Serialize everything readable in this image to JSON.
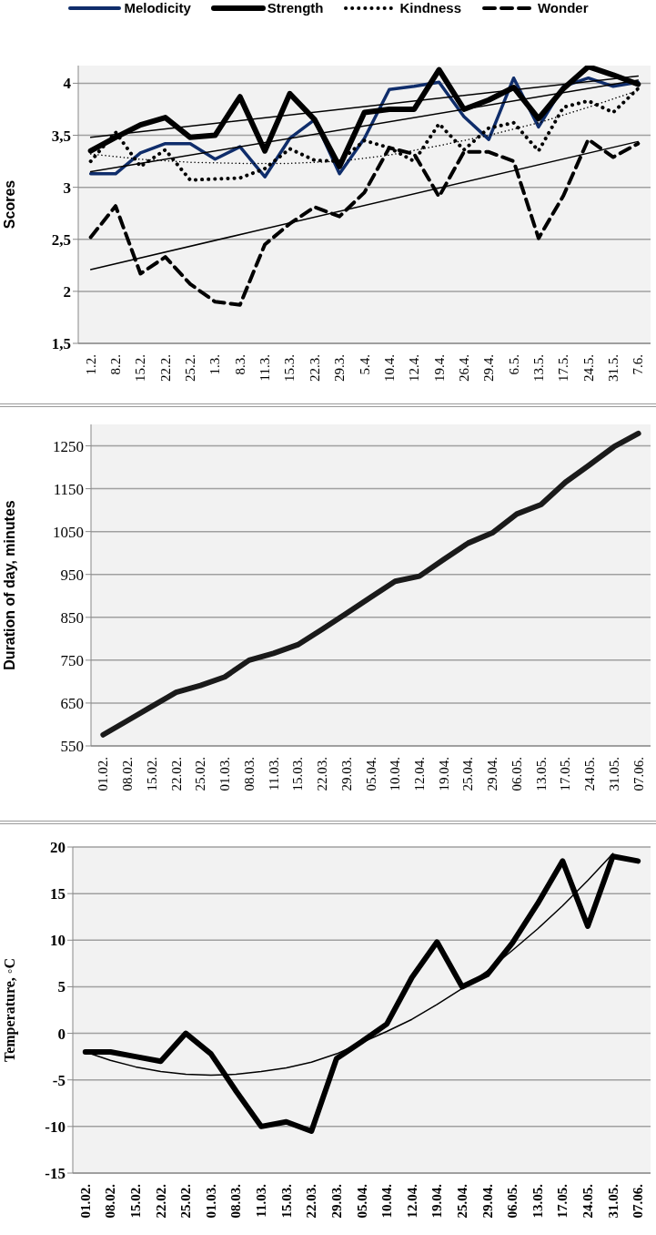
{
  "chart_data": [
    {
      "type": "line",
      "ylabel": "Scores",
      "categories": [
        "1.2.",
        "8.2.",
        "15.2.",
        "22.2.",
        "25.2.",
        "1.3.",
        "8.3.",
        "11.3.",
        "15.3.",
        "22.3.",
        "29.3.",
        "5.4.",
        "10.4.",
        "12.4.",
        "19.4.",
        "26.4.",
        "29.4.",
        "6.5.",
        "13.5.",
        "17.5.",
        "24.5.",
        "31.5.",
        "7.6."
      ],
      "ylim": [
        1.5,
        4.17
      ],
      "yticks": [
        {
          "value": 1.5,
          "label": "1,5"
        },
        2,
        {
          "value": 2.5,
          "label": "2,5"
        },
        3,
        {
          "value": 3.5,
          "label": "3,5"
        },
        4
      ],
      "grid": "y",
      "legend": "top",
      "marker": "none",
      "series": [
        {
          "name": "Melodicity",
          "color": "#0f2d6b",
          "line_style": "solid",
          "values": [
            3.13,
            3.13,
            3.33,
            3.42,
            3.42,
            3.27,
            3.39,
            3.1,
            3.47,
            3.65,
            3.13,
            3.47,
            3.94,
            3.97,
            4.01,
            3.68,
            3.46,
            4.05,
            3.58,
            3.97,
            4.05,
            3.97,
            4.01
          ]
        },
        {
          "name": "Strength",
          "color": "#000000",
          "line_style": "solid",
          "values": [
            3.35,
            3.48,
            3.6,
            3.67,
            3.48,
            3.5,
            3.87,
            3.35,
            3.9,
            3.65,
            3.2,
            3.72,
            3.75,
            3.75,
            4.13,
            3.75,
            3.84,
            3.96,
            3.66,
            3.95,
            4.16,
            4.08,
            3.99
          ]
        },
        {
          "name": "Kindness",
          "color": "#000000",
          "line_style": "dotted",
          "values": [
            3.25,
            3.53,
            3.2,
            3.36,
            3.07,
            3.08,
            3.09,
            3.18,
            3.37,
            3.26,
            3.25,
            3.45,
            3.38,
            3.25,
            3.61,
            3.36,
            3.57,
            3.62,
            3.35,
            3.77,
            3.83,
            3.72,
            3.95
          ]
        },
        {
          "name": "Wonder",
          "color": "#000000",
          "line_style": "dashed",
          "values": [
            2.52,
            2.82,
            2.17,
            2.33,
            2.07,
            1.9,
            1.87,
            2.45,
            2.65,
            2.81,
            2.72,
            2.95,
            3.38,
            3.32,
            2.91,
            3.34,
            3.34,
            3.25,
            2.51,
            2.92,
            3.46,
            3.29,
            3.42
          ]
        },
        {
          "type": "line",
          "color": "#000000",
          "line_style": "solid",
          "x": [
            "1.2.",
            "7.6."
          ],
          "values": [
            3.15,
            4.03
          ]
        },
        {
          "type": "line",
          "color": "#000000",
          "line_style": "solid",
          "x": [
            "1.2.",
            "7.6."
          ],
          "values": [
            3.48,
            4.07
          ]
        },
        {
          "type": "line",
          "color": "#000000",
          "line_style": "dotted",
          "x": [
            "1.2.",
            "15.2.",
            "25.2.",
            "8.3.",
            "15.3.",
            "29.3.",
            "10.4.",
            "19.4.",
            "29.4.",
            "13.5.",
            "24.5.",
            "7.6."
          ],
          "values": [
            3.32,
            3.27,
            3.24,
            3.23,
            3.23,
            3.25,
            3.31,
            3.4,
            3.5,
            3.62,
            3.77,
            3.93
          ]
        },
        {
          "type": "line",
          "color": "#000000",
          "line_style": "solid",
          "x": [
            "1.2.",
            "7.6."
          ],
          "values": [
            2.21,
            3.44
          ]
        }
      ]
    },
    {
      "type": "line",
      "ylabel": "Duration of day, minutes",
      "categories": [
        "01.02.",
        "08.02.",
        "15.02.",
        "22.02.",
        "25.02.",
        "01.03.",
        "08.03.",
        "11.03.",
        "15.03.",
        "22.03.",
        "29.03.",
        "05.04.",
        "10.04.",
        "12.04.",
        "19.04.",
        "25.04.",
        "29.04.",
        "06.05.",
        "13.05.",
        "17.05.",
        "24.05.",
        "31.05.",
        "07.06."
      ],
      "ylim": [
        550,
        1300
      ],
      "yticks": [
        550,
        650,
        750,
        850,
        950,
        1050,
        1150,
        1250
      ],
      "grid": "y",
      "marker": "none",
      "series": [
        {
          "color": "#1a1a1a",
          "line_style": "solid",
          "values": [
            576,
            609,
            642,
            675,
            691,
            711,
            750,
            766,
            786,
            822,
            859,
            897,
            934,
            946,
            985,
            1023,
            1047,
            1091,
            1113,
            1165,
            1206,
            1248,
            1279
          ]
        }
      ]
    },
    {
      "type": "line",
      "ylabel": "Temperature, ◦C",
      "categories": [
        "01.02.",
        "08.02.",
        "15.02.",
        "22.02.",
        "25.02.",
        "01.03.",
        "08.03.",
        "11.03.",
        "15.03.",
        "22.03.",
        "29.03.",
        "05.04.",
        "10.04.",
        "12.04.",
        "19.04.",
        "25.04.",
        "29.04.",
        "06.05.",
        "13.05.",
        "17.05.",
        "24.05.",
        "31.05.",
        "07.06."
      ],
      "ylim": [
        -15,
        20
      ],
      "yticks": [
        -15,
        -10,
        -5,
        0,
        5,
        10,
        15,
        20
      ],
      "grid": "y",
      "marker": "none",
      "series": [
        {
          "color": "#000000",
          "line_style": "solid",
          "values": [
            -2,
            -2,
            -2.5,
            -3,
            0,
            -2.2,
            -6.2,
            -10,
            -9.5,
            -10.5,
            -2.7,
            -0.9,
            1,
            6,
            9.8,
            5,
            6.3,
            9.7,
            13.9,
            18.5,
            11.5,
            19,
            18.5
          ]
        },
        {
          "type": "line",
          "color": "#000000",
          "line_style": "solid",
          "x": [
            "01.02.",
            "08.02.",
            "15.02.",
            "22.02.",
            "25.02.",
            "01.03.",
            "08.03.",
            "11.03.",
            "15.03.",
            "22.03.",
            "29.03.",
            "05.04.",
            "10.04.",
            "12.04.",
            "19.04.",
            "25.04.",
            "29.04.",
            "06.05.",
            "13.05.",
            "17.05.",
            "24.05.",
            "31.05."
          ],
          "values": [
            -2,
            -2.9,
            -3.6,
            -4.1,
            -4.4,
            -4.5,
            -4.4,
            -4.1,
            -3.7,
            -3.1,
            -2.2,
            -1,
            0.2,
            1.5,
            3.1,
            4.8,
            6.7,
            8.9,
            11.2,
            13.7,
            16.4,
            19.3
          ]
        }
      ]
    }
  ]
}
